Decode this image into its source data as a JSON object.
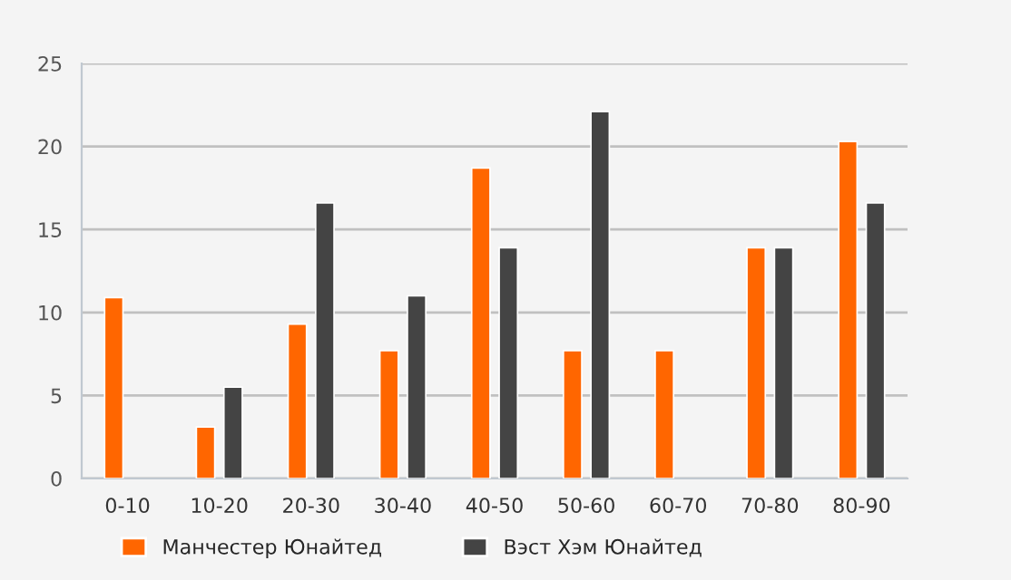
{
  "chart_data": {
    "type": "bar",
    "categories": [
      "0-10",
      "10-20",
      "20-30",
      "30-40",
      "40-50",
      "50-60",
      "60-70",
      "70-80",
      "80-90"
    ],
    "series": [
      {
        "name": "Манчестер Юнайтед",
        "color": "#ff6600",
        "values": [
          10.9,
          3.1,
          9.3,
          7.7,
          18.7,
          7.7,
          7.7,
          13.9,
          20.3
        ]
      },
      {
        "name": "Вэст Хэм Юнайтед",
        "color": "#444444",
        "values": [
          null,
          5.5,
          16.6,
          11.0,
          13.9,
          22.1,
          null,
          13.9,
          16.6
        ]
      }
    ],
    "ylim": [
      0,
      25
    ],
    "yticks": [
      0,
      5,
      10,
      15,
      20,
      25
    ],
    "grid": "y",
    "legend": "bottom"
  }
}
